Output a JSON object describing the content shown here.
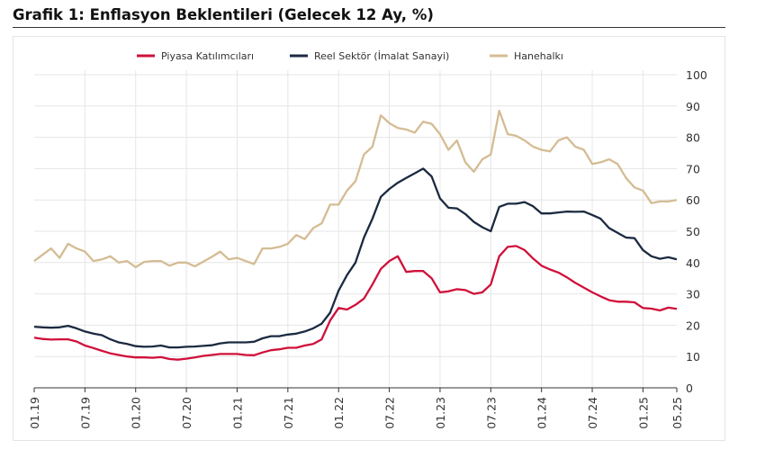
{
  "title": "Grafik 1: Enflasyon Beklentileri (Gelecek 12 Ay, %)",
  "chart_data": {
    "type": "line",
    "title": "Grafik 1: Enflasyon Beklentileri (Gelecek 12 Ay, %)",
    "xlabel": "",
    "ylabel": "",
    "x_start": "01.19",
    "x_frequency": "monthly",
    "x_tick_labels": [
      "01.19",
      "07.19",
      "01.20",
      "07.20",
      "01.21",
      "07.21",
      "01.22",
      "07.22",
      "01.23",
      "07.23",
      "01.24",
      "07.24",
      "01.25",
      "05.25"
    ],
    "ylim": [
      0,
      100
    ],
    "y_ticks": [
      0,
      10,
      20,
      30,
      40,
      50,
      60,
      70,
      80,
      90,
      100
    ],
    "y_axis_side": "right",
    "grid": true,
    "legend_position": "top",
    "series": [
      {
        "name": "Piyasa Katılımcıları",
        "color": "#d0103a",
        "values": [
          16,
          15.6,
          15.4,
          15.5,
          15.5,
          14.8,
          13.5,
          12.7,
          11.8,
          11,
          10.5,
          10,
          9.7,
          9.7,
          9.6,
          9.8,
          9.2,
          9,
          9.3,
          9.7,
          10.2,
          10.5,
          10.8,
          10.8,
          10.8,
          10.5,
          10.4,
          11.3,
          12,
          12.3,
          12.8,
          12.8,
          13.5,
          14,
          15.5,
          21.5,
          25.5,
          25,
          26.5,
          28.5,
          33,
          38,
          40.5,
          42,
          37,
          37.3,
          37.3,
          35,
          30.5,
          30.8,
          31.5,
          31.2,
          30,
          30.5,
          33,
          42,
          45,
          45.3,
          44,
          41.3,
          39,
          37.8,
          36.8,
          35.3,
          33.5,
          32,
          30.5,
          29.2,
          28,
          27.5,
          27.5,
          27.3,
          25.5,
          25.3,
          24.7,
          25.6,
          25.2
        ]
      },
      {
        "name": "Reel Sektör (İmalat Sanayi)",
        "color": "#1b2a41",
        "values": [
          19.5,
          19.3,
          19.2,
          19.3,
          19.8,
          19,
          18,
          17.3,
          16.8,
          15.5,
          14.5,
          14,
          13.3,
          13.1,
          13.2,
          13.5,
          12.9,
          12.9,
          13.1,
          13.2,
          13.4,
          13.6,
          14.2,
          14.5,
          14.5,
          14.5,
          14.7,
          15.8,
          16.5,
          16.5,
          17,
          17.3,
          18,
          19,
          20.5,
          24,
          31,
          36,
          40,
          48,
          54,
          61,
          63.5,
          65.5,
          67,
          68.5,
          70,
          67.5,
          60.5,
          57.5,
          57.3,
          55.5,
          53,
          51.3,
          50,
          57.8,
          58.8,
          58.8,
          59.3,
          58,
          55.7,
          55.7,
          56,
          56.3,
          56.2,
          56.3,
          55.2,
          54,
          51,
          49.5,
          48,
          47.8,
          44,
          42,
          41.2,
          41.7,
          41
        ]
      },
      {
        "name": "Hanehalkı",
        "color": "#d4bc93",
        "values": [
          40.5,
          42.5,
          44.5,
          41.5,
          46,
          44.5,
          43.5,
          40.5,
          41,
          42,
          40,
          40.5,
          38.5,
          40.2,
          40.5,
          40.5,
          39,
          40,
          40,
          38.8,
          40.3,
          41.8,
          43.5,
          41,
          41.5,
          40.5,
          39.5,
          44.5,
          44.5,
          45,
          46,
          48.8,
          47.5,
          51,
          52.5,
          58.5,
          58.5,
          63,
          66,
          74.5,
          77,
          87,
          84.5,
          83,
          82.5,
          81.5,
          85,
          84.3,
          81,
          76,
          79,
          72,
          69,
          73,
          74.5,
          88.5,
          81,
          80.5,
          79,
          77,
          76,
          75.5,
          79,
          80,
          77,
          76,
          71.5,
          72,
          73,
          71.5,
          67,
          64,
          63,
          59,
          59.5,
          59.5,
          60
        ]
      }
    ]
  }
}
